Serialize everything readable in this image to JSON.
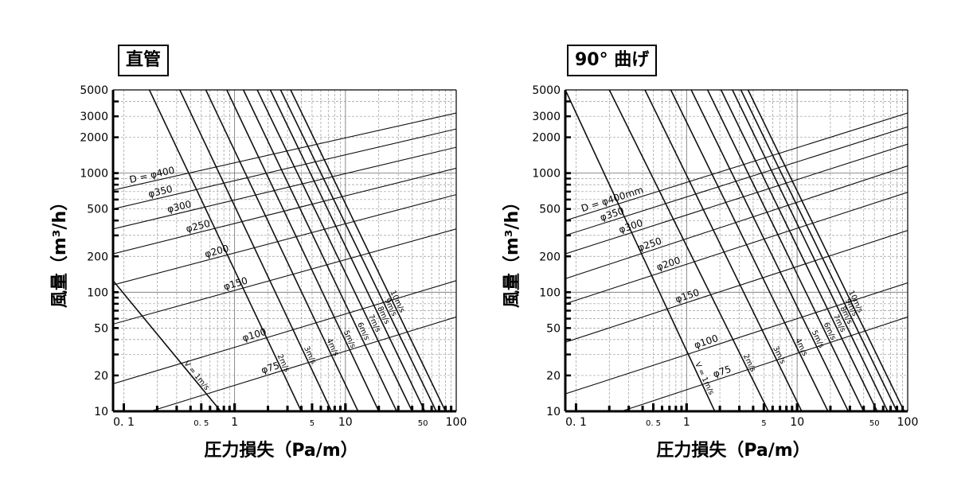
{
  "chart_data": [
    {
      "type": "line",
      "title": "直管",
      "xlabel": "圧力損失（Pa/m）",
      "ylabel": "風量（m³/h）",
      "x_scale": "log",
      "y_scale": "log",
      "xlim": [
        0.08,
        100
      ],
      "ylim": [
        10,
        5000
      ],
      "x_ticks": [
        0.1,
        0.5,
        1,
        5,
        10,
        50,
        100
      ],
      "x_tick_labels": [
        "0. 1",
        "0. 5",
        "1",
        "5",
        "10",
        "50",
        "100"
      ],
      "y_ticks": [
        10,
        20,
        50,
        100,
        200,
        500,
        1000,
        2000,
        3000,
        5000
      ],
      "y_tick_labels": [
        "10",
        "20",
        "50",
        "100",
        "200",
        "500",
        "1000",
        "2000",
        "3000",
        "5000"
      ],
      "grid": true,
      "series": [
        {
          "name": "D = φ400",
          "kind": "diameter",
          "x": [
            0.08,
            100
          ],
          "y": [
            720,
            3200
          ]
        },
        {
          "name": "φ350",
          "kind": "diameter",
          "x": [
            0.08,
            100
          ],
          "y": [
            500,
            2350
          ]
        },
        {
          "name": "φ300",
          "kind": "diameter",
          "x": [
            0.08,
            100
          ],
          "y": [
            340,
            1650
          ]
        },
        {
          "name": "φ250",
          "kind": "diameter",
          "x": [
            0.08,
            100
          ],
          "y": [
            210,
            1100
          ]
        },
        {
          "name": "φ200",
          "kind": "diameter",
          "x": [
            0.08,
            100
          ],
          "y": [
            115,
            660
          ]
        },
        {
          "name": "φ150",
          "kind": "diameter",
          "x": [
            0.08,
            100
          ],
          "y": [
            54,
            340
          ]
        },
        {
          "name": "φ100",
          "kind": "diameter",
          "x": [
            0.08,
            100
          ],
          "y": [
            17,
            125
          ]
        },
        {
          "name": "φ75",
          "kind": "diameter",
          "x": [
            0.08,
            100
          ],
          "y": [
            8,
            62
          ]
        },
        {
          "name": "V = 1m/s",
          "kind": "velocity",
          "x": [
            0.08,
            0.75
          ],
          "y": [
            125,
            10
          ]
        },
        {
          "name": "2m/s",
          "kind": "velocity",
          "x": [
            0.17,
            4
          ],
          "y": [
            5000,
            10
          ]
        },
        {
          "name": "3m/s",
          "kind": "velocity",
          "x": [
            0.32,
            7.5
          ],
          "y": [
            5000,
            10
          ]
        },
        {
          "name": "4m/s",
          "kind": "velocity",
          "x": [
            0.55,
            13
          ],
          "y": [
            5000,
            10
          ]
        },
        {
          "name": "5m/s",
          "kind": "velocity",
          "x": [
            0.85,
            20
          ],
          "y": [
            5000,
            10
          ]
        },
        {
          "name": "6m/s",
          "kind": "velocity",
          "x": [
            1.2,
            29
          ],
          "y": [
            5000,
            10
          ]
        },
        {
          "name": "7m/s",
          "kind": "velocity",
          "x": [
            1.6,
            40
          ],
          "y": [
            5000,
            10
          ]
        },
        {
          "name": "8m/s",
          "kind": "velocity",
          "x": [
            2.1,
            52
          ],
          "y": [
            5000,
            10
          ]
        },
        {
          "name": "9m/s",
          "kind": "velocity",
          "x": [
            2.6,
            66
          ],
          "y": [
            5000,
            10
          ]
        },
        {
          "name": "10m/s",
          "kind": "velocity",
          "x": [
            3.2,
            80
          ],
          "y": [
            5000,
            10
          ]
        }
      ]
    },
    {
      "type": "line",
      "title": "90° 曲げ",
      "xlabel": "圧力損失（Pa/m）",
      "ylabel": "風量（m³/h）",
      "x_scale": "log",
      "y_scale": "log",
      "xlim": [
        0.08,
        100
      ],
      "ylim": [
        10,
        5000
      ],
      "x_ticks": [
        0.1,
        0.5,
        1,
        5,
        10,
        50,
        100
      ],
      "x_tick_labels": [
        "0. 1",
        "0. 5",
        "1",
        "5",
        "10",
        "50",
        "100"
      ],
      "y_ticks": [
        10,
        20,
        50,
        100,
        200,
        500,
        1000,
        2000,
        3000,
        5000
      ],
      "y_tick_labels": [
        "10",
        "20",
        "50",
        "100",
        "200",
        "500",
        "1000",
        "2000",
        "3000",
        "5000"
      ],
      "grid": true,
      "series": [
        {
          "name": "D = φ400mm",
          "kind": "diameter",
          "x": [
            0.08,
            100
          ],
          "y": [
            400,
            3200
          ]
        },
        {
          "name": "φ350",
          "kind": "diameter",
          "x": [
            0.08,
            100
          ],
          "y": [
            300,
            2450
          ]
        },
        {
          "name": "φ300",
          "kind": "diameter",
          "x": [
            0.08,
            100
          ],
          "y": [
            210,
            1750
          ]
        },
        {
          "name": "φ250",
          "kind": "diameter",
          "x": [
            0.08,
            100
          ],
          "y": [
            130,
            1150
          ]
        },
        {
          "name": "φ200",
          "kind": "diameter",
          "x": [
            0.08,
            100
          ],
          "y": [
            80,
            690
          ]
        },
        {
          "name": "φ150",
          "kind": "diameter",
          "x": [
            0.08,
            100
          ],
          "y": [
            38,
            330
          ]
        },
        {
          "name": "φ100",
          "kind": "diameter",
          "x": [
            0.08,
            100
          ],
          "y": [
            14,
            120
          ]
        },
        {
          "name": "φ75",
          "kind": "diameter",
          "x": [
            0.08,
            100
          ],
          "y": [
            7,
            62
          ]
        },
        {
          "name": "V = 1m/s",
          "kind": "velocity",
          "x": [
            0.08,
            1.8
          ],
          "y": [
            5000,
            10
          ]
        },
        {
          "name": "2m/s",
          "kind": "velocity",
          "x": [
            0.2,
            5.5
          ],
          "y": [
            5000,
            10
          ]
        },
        {
          "name": "3m/s",
          "kind": "velocity",
          "x": [
            0.42,
            11
          ],
          "y": [
            5000,
            10
          ]
        },
        {
          "name": "4m/s",
          "kind": "velocity",
          "x": [
            0.72,
            19
          ],
          "y": [
            5000,
            10
          ]
        },
        {
          "name": "5m/s",
          "kind": "velocity",
          "x": [
            1.1,
            29
          ],
          "y": [
            5000,
            10
          ]
        },
        {
          "name": "6m/s",
          "kind": "velocity",
          "x": [
            1.55,
            40
          ],
          "y": [
            5000,
            10
          ]
        },
        {
          "name": "7m/s",
          "kind": "velocity",
          "x": [
            2.05,
            53
          ],
          "y": [
            5000,
            10
          ]
        },
        {
          "name": "8m/s",
          "kind": "velocity",
          "x": [
            2.6,
            66
          ],
          "y": [
            5000,
            10
          ]
        },
        {
          "name": "9m/s",
          "kind": "velocity",
          "x": [
            3.1,
            80
          ],
          "y": [
            5000,
            10
          ]
        },
        {
          "name": "10m/s",
          "kind": "velocity",
          "x": [
            3.6,
            93
          ],
          "y": [
            5000,
            10
          ]
        }
      ]
    }
  ]
}
